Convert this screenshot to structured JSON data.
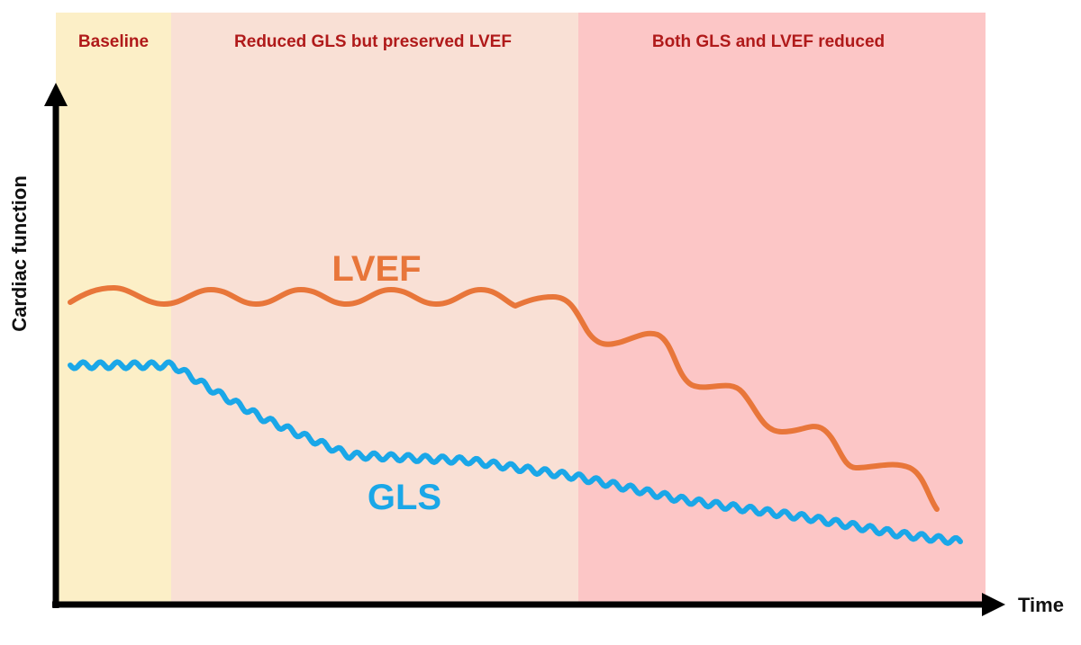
{
  "phases": [
    {
      "label": "Baseline",
      "fill": "#fcefc7"
    },
    {
      "label": "Reduced GLS but preserved LVEF",
      "fill": "#f9e0d5"
    },
    {
      "label": "Both GLS and LVEF reduced",
      "fill": "#fcc6c6"
    }
  ],
  "phase_label_color": "#b01a1a",
  "axes": {
    "y_label": "Cardiac function",
    "x_label": "Time",
    "color": "#000000"
  },
  "curves": {
    "lvef": {
      "label": "LVEF",
      "color": "#e8763a"
    },
    "gls": {
      "label": "GLS",
      "color": "#1aa7e8"
    }
  }
}
